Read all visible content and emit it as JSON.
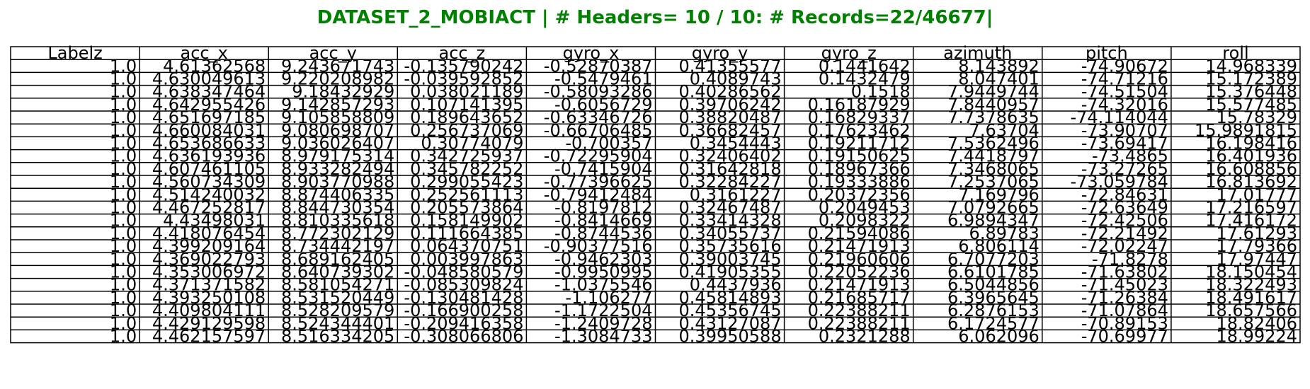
{
  "title": "DATASET_2_MOBIACT | # Headers= 10 / 10: # Records=22/46677|",
  "chart_data": {
    "type": "table",
    "columns": [
      "Labelz",
      "acc_x",
      "acc_y",
      "acc_z",
      "gyro_x",
      "gyro_y",
      "gyro_z",
      "azimuth",
      "pitch",
      "roll"
    ],
    "rows": [
      [
        "1.0",
        "4.61362568",
        "9.243671743",
        "-0.135790242",
        "-0.52870387",
        "0.41355577",
        "0.1441642",
        "8.143892",
        "-74.90672",
        "14.968339"
      ],
      [
        "1.0",
        "4.630049613",
        "9.220208982",
        "-0.039592852",
        "-0.5479461",
        "0.4089743",
        "0.1432479",
        "8.047401",
        "-74.71216",
        "15.172389"
      ],
      [
        "1.0",
        "4.638347464",
        "9.18432929",
        "0.038021189",
        "-0.58093286",
        "0.40286562",
        "0.1518",
        "7.9449744",
        "-74.51504",
        "15.376448"
      ],
      [
        "1.0",
        "4.642955426",
        "9.142857293",
        "0.107141395",
        "-0.6056729",
        "0.39706242",
        "0.16187929",
        "7.8440957",
        "-74.32016",
        "15.577485"
      ],
      [
        "1.0",
        "4.651697185",
        "9.105858809",
        "0.189643652",
        "-0.63346726",
        "0.38820487",
        "0.16829337",
        "7.7378635",
        "-74.114044",
        "15.78329"
      ],
      [
        "1.0",
        "4.660084031",
        "9.080698707",
        "0.256737069",
        "-0.66706485",
        "0.36682457",
        "0.17623462",
        "7.63704",
        "-73.90707",
        "15.9891815"
      ],
      [
        "1.0",
        "4.653686633",
        "9.036026407",
        "0.30774079",
        "-0.700357",
        "0.3454443",
        "0.19211712",
        "7.5362496",
        "-73.69417",
        "16.198416"
      ],
      [
        "1.0",
        "4.636193936",
        "8.979175314",
        "0.342725937",
        "-0.72295904",
        "0.32406402",
        "0.19150625",
        "7.4418797",
        "-73.4865",
        "16.401936"
      ],
      [
        "1.0",
        "4.607461105",
        "8.933282494",
        "0.345782252",
        "-0.7415904",
        "0.31642818",
        "0.18967366",
        "7.3468065",
        "-73.27265",
        "16.608856"
      ],
      [
        "1.0",
        "4.560734309",
        "8.903770988",
        "0.299055423",
        "-0.77396625",
        "0.32284227",
        "0.19333886",
        "7.2537065",
        "-73.059784",
        "16.813692"
      ],
      [
        "1.0",
        "4.514240032",
        "8.874406335",
        "0.252561113",
        "-0.79412484",
        "0.3161227",
        "0.20372356",
        "7.169796",
        "-72.84631",
        "17.01777"
      ],
      [
        "1.0",
        "4.467252817",
        "8.844730354",
        "0.205573864",
        "-0.8197812",
        "0.32467487",
        "0.2049453",
        "7.0792665",
        "-72.63649",
        "17.216597"
      ],
      [
        "1.0",
        "4.43498031",
        "8.810335618",
        "0.158149902",
        "-0.8414669",
        "0.33414328",
        "0.2098322",
        "6.9894347",
        "-72.42506",
        "17.416172"
      ],
      [
        "1.0",
        "4.418076454",
        "8.772302129",
        "0.111664385",
        "-0.8744536",
        "0.34055737",
        "0.21594086",
        "6.89783",
        "-72.21492",
        "17.61293"
      ],
      [
        "1.0",
        "4.399209164",
        "8.734442197",
        "0.064370751",
        "-0.90377516",
        "0.35735616",
        "0.21471913",
        "6.806114",
        "-72.02247",
        "17.79366"
      ],
      [
        "1.0",
        "4.369022793",
        "8.689162405",
        "0.003997863",
        "-0.9462303",
        "0.39003745",
        "0.21960606",
        "6.7077203",
        "-71.8278",
        "17.97447"
      ],
      [
        "1.0",
        "4.353006972",
        "8.640739302",
        "-0.048580579",
        "-0.9950995",
        "0.41905355",
        "0.22052236",
        "6.6101785",
        "-71.63802",
        "18.150454"
      ],
      [
        "1.0",
        "4.371371582",
        "8.581054271",
        "-0.085309824",
        "-1.0375546",
        "0.4437936",
        "0.21471913",
        "6.5044856",
        "-71.45023",
        "18.322493"
      ],
      [
        "1.0",
        "4.393250108",
        "8.531520449",
        "-0.130481428",
        "-1.106277",
        "0.45814893",
        "0.21685717",
        "6.3965645",
        "-71.26384",
        "18.491617"
      ],
      [
        "1.0",
        "4.409804111",
        "8.528209579",
        "-0.166900258",
        "-1.1722504",
        "0.45356745",
        "0.22388211",
        "6.2876153",
        "-71.07864",
        "18.657566"
      ],
      [
        "1.0",
        "4.429129598",
        "8.524344401",
        "-0.209416358",
        "-1.2409728",
        "0.43127087",
        "0.22388211",
        "6.1724577",
        "-70.89153",
        "18.82406"
      ],
      [
        "1.0",
        "4.462157597",
        "8.516334205",
        "-0.308066806",
        "-1.3084733",
        "0.39950588",
        "0.2321288",
        "6.062096",
        "-70.69977",
        "18.99224"
      ]
    ]
  }
}
